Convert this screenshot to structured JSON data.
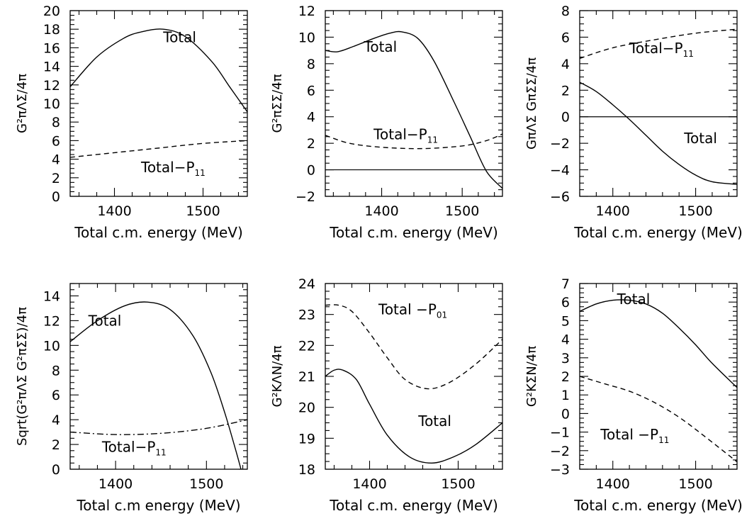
{
  "chart_data": [
    {
      "type": "line",
      "ylabel": "G²πΛΣ/4π",
      "xlabel": "Total c.m. energy (MeV)",
      "xlim": [
        1350,
        1550
      ],
      "ylim": [
        0,
        20
      ],
      "x_ticks": [
        1400,
        1500
      ],
      "y_ticks": [
        0,
        2,
        4,
        6,
        8,
        10,
        12,
        14,
        16,
        18,
        20
      ],
      "zero_line": false,
      "series": [
        {
          "name": "Total",
          "style": "solid",
          "x": [
            1350,
            1380,
            1410,
            1430,
            1455,
            1480,
            1510,
            1530,
            1550
          ],
          "y": [
            11.8,
            15.0,
            17.0,
            17.7,
            18.0,
            17.2,
            14.5,
            11.8,
            9.1
          ]
        },
        {
          "name": "Total−P11",
          "style": "dashed",
          "x": [
            1350,
            1400,
            1450,
            1500,
            1550
          ],
          "y": [
            4.2,
            4.7,
            5.2,
            5.7,
            6.0
          ]
        }
      ],
      "annotations": [
        {
          "text": "Total",
          "x": 1455,
          "y": 16.6
        },
        {
          "text": "Total−P",
          "sub": "11",
          "x": 1430,
          "y": 2.6
        }
      ]
    },
    {
      "type": "line",
      "ylabel": "G²πΣΣ/4π",
      "xlabel": "Total c.m. energy (MeV)",
      "xlim": [
        1330,
        1550
      ],
      "ylim": [
        -2,
        12
      ],
      "x_ticks": [
        1400,
        1500
      ],
      "y_ticks": [
        -2,
        0,
        2,
        4,
        6,
        8,
        10,
        12
      ],
      "zero_line": true,
      "series": [
        {
          "name": "Total",
          "style": "solid",
          "x": [
            1330,
            1345,
            1365,
            1390,
            1410,
            1425,
            1445,
            1465,
            1490,
            1510,
            1530,
            1550
          ],
          "y": [
            9.0,
            8.9,
            9.3,
            9.9,
            10.3,
            10.4,
            9.9,
            8.2,
            5.1,
            2.5,
            -0.1,
            -1.4
          ]
        },
        {
          "name": "Total−P11",
          "style": "dashed",
          "x": [
            1330,
            1360,
            1400,
            1450,
            1500,
            1530,
            1550
          ],
          "y": [
            2.6,
            2.0,
            1.7,
            1.6,
            1.8,
            2.2,
            2.7
          ]
        }
      ],
      "annotations": [
        {
          "text": "Total",
          "x": 1378,
          "y": 8.9
        },
        {
          "text": "Total−P",
          "sub": "11",
          "x": 1390,
          "y": 2.3
        }
      ]
    },
    {
      "type": "line",
      "ylabel": "GπΛΣ GπΣΣ/4π",
      "xlabel": "Total c.m. energy (MeV)",
      "xlim": [
        1360,
        1550
      ],
      "ylim": [
        -6,
        8
      ],
      "x_ticks": [
        1400,
        1500
      ],
      "y_ticks": [
        -6,
        -4,
        -2,
        0,
        2,
        4,
        6,
        8
      ],
      "zero_line": true,
      "series": [
        {
          "name": "Total",
          "style": "solid",
          "x": [
            1360,
            1380,
            1400,
            1420,
            1440,
            1460,
            1480,
            1500,
            1520,
            1550
          ],
          "y": [
            2.6,
            1.9,
            0.9,
            -0.2,
            -1.4,
            -2.6,
            -3.6,
            -4.4,
            -4.9,
            -5.1
          ]
        },
        {
          "name": "Total−P11",
          "style": "dashed",
          "x": [
            1360,
            1400,
            1450,
            1500,
            1550
          ],
          "y": [
            4.4,
            5.2,
            5.8,
            6.3,
            6.6
          ]
        }
      ],
      "annotations": [
        {
          "text": "Total",
          "x": 1486,
          "y": -2.0
        },
        {
          "text": "Total−P",
          "sub": "11",
          "x": 1420,
          "y": 4.8
        }
      ]
    },
    {
      "type": "line",
      "ylabel": "Sqrt(G²πΛΣ G²πΣΣ)/4π",
      "xlabel": "Total c.m energy (MeV)",
      "xlim": [
        1350,
        1545
      ],
      "ylim": [
        0,
        15
      ],
      "x_ticks": [
        1400,
        1500
      ],
      "y_ticks": [
        0,
        2,
        4,
        6,
        8,
        10,
        12,
        14
      ],
      "zero_line": false,
      "series": [
        {
          "name": "Total",
          "style": "solid",
          "x": [
            1350,
            1380,
            1410,
            1435,
            1460,
            1485,
            1505,
            1520,
            1532,
            1538
          ],
          "y": [
            10.3,
            12.0,
            13.2,
            13.5,
            12.9,
            10.8,
            7.8,
            4.6,
            1.6,
            0.0
          ]
        },
        {
          "name": "Total−P11",
          "style": "dashdot",
          "x": [
            1350,
            1400,
            1450,
            1500,
            1545
          ],
          "y": [
            3.0,
            2.8,
            2.9,
            3.3,
            4.0
          ]
        }
      ],
      "annotations": [
        {
          "text": "Total",
          "x": 1370,
          "y": 11.6
        },
        {
          "text": "Total−P",
          "sub": "11",
          "x": 1385,
          "y": 1.4
        }
      ]
    },
    {
      "type": "line",
      "ylabel": "G²KΛN/4π",
      "xlabel": "Total c.m. energy (MeV)",
      "xlim": [
        1350,
        1550
      ],
      "ylim": [
        18,
        24
      ],
      "x_ticks": [
        1400,
        1500
      ],
      "y_ticks": [
        18,
        19,
        20,
        21,
        22,
        23,
        24
      ],
      "zero_line": false,
      "series": [
        {
          "name": "Total",
          "style": "solid",
          "x": [
            1350,
            1360,
            1370,
            1385,
            1400,
            1420,
            1445,
            1470,
            1495,
            1520,
            1550
          ],
          "y": [
            21.0,
            21.2,
            21.2,
            20.9,
            20.1,
            19.1,
            18.4,
            18.2,
            18.4,
            18.8,
            19.5
          ]
        },
        {
          "name": "Total−P01",
          "style": "dashed",
          "x": [
            1350,
            1365,
            1380,
            1400,
            1420,
            1440,
            1465,
            1490,
            1520,
            1550
          ],
          "y": [
            23.3,
            23.3,
            23.1,
            22.4,
            21.6,
            20.9,
            20.6,
            20.8,
            21.4,
            22.2
          ]
        }
      ],
      "annotations": [
        {
          "text": "Total",
          "x": 1455,
          "y": 19.4
        },
        {
          "text": "Total −P",
          "sub": "01",
          "x": 1410,
          "y": 23.0
        }
      ]
    },
    {
      "type": "line",
      "ylabel": "G²KΣN/4π",
      "xlabel": "Total c.m. energy (MeV)",
      "xlim": [
        1360,
        1550
      ],
      "ylim": [
        -3,
        7
      ],
      "x_ticks": [
        1400,
        1500
      ],
      "y_ticks": [
        -3,
        -2,
        -1,
        0,
        1,
        2,
        3,
        4,
        5,
        6,
        7
      ],
      "zero_line": false,
      "series": [
        {
          "name": "Total",
          "style": "solid",
          "x": [
            1360,
            1380,
            1400,
            1420,
            1440,
            1460,
            1480,
            1500,
            1520,
            1550
          ],
          "y": [
            5.5,
            5.9,
            6.1,
            6.1,
            5.9,
            5.4,
            4.6,
            3.7,
            2.7,
            1.4
          ]
        },
        {
          "name": "Total−P11",
          "style": "dashed",
          "x": [
            1360,
            1390,
            1420,
            1450,
            1480,
            1510,
            1550
          ],
          "y": [
            2.0,
            1.6,
            1.2,
            0.6,
            -0.2,
            -1.2,
            -2.6
          ]
        }
      ],
      "annotations": [
        {
          "text": "Total",
          "x": 1405,
          "y": 5.9
        },
        {
          "text": "Total −P",
          "sub": "11",
          "x": 1385,
          "y": -1.4
        }
      ]
    }
  ]
}
